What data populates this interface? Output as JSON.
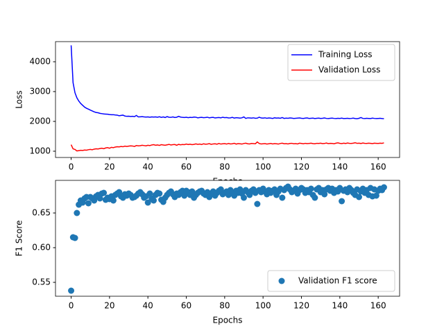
{
  "chart_data": [
    {
      "type": "line",
      "xlabel": "Epochs",
      "ylabel": "Loss",
      "x": [
        0,
        1,
        2,
        3,
        4,
        5,
        6,
        7,
        8,
        9,
        10,
        11,
        12,
        13,
        14,
        15,
        16,
        17,
        18,
        19,
        20,
        21,
        22,
        23,
        24,
        25,
        26,
        27,
        28,
        29,
        30,
        31,
        32,
        33,
        34,
        35,
        36,
        37,
        38,
        39,
        40,
        41,
        42,
        43,
        44,
        45,
        46,
        47,
        48,
        49,
        50,
        51,
        52,
        53,
        54,
        55,
        56,
        57,
        58,
        59,
        60,
        61,
        62,
        63,
        64,
        65,
        66,
        67,
        68,
        69,
        70,
        71,
        72,
        73,
        74,
        75,
        76,
        77,
        78,
        79,
        80,
        81,
        82,
        83,
        84,
        85,
        86,
        87,
        88,
        89,
        90,
        91,
        92,
        93,
        94,
        95,
        96,
        97,
        98,
        99,
        100,
        101,
        102,
        103,
        104,
        105,
        106,
        107,
        108,
        109,
        110,
        111,
        112,
        113,
        114,
        115,
        116,
        117,
        118,
        119,
        120,
        121,
        122,
        123,
        124,
        125,
        126,
        127,
        128,
        129,
        130,
        131,
        132,
        133,
        134,
        135,
        136,
        137,
        138,
        139,
        140,
        141,
        142,
        143,
        144,
        145,
        146,
        147,
        148,
        149,
        150,
        151,
        152,
        153,
        154,
        155,
        156,
        157,
        158,
        159,
        160,
        161,
        162,
        163
      ],
      "series": [
        {
          "name": "Training Loss",
          "color": "#0000ff",
          "values": [
            4550,
            3300,
            2960,
            2790,
            2680,
            2600,
            2540,
            2480,
            2440,
            2410,
            2380,
            2350,
            2320,
            2300,
            2290,
            2270,
            2260,
            2250,
            2245,
            2240,
            2230,
            2225,
            2225,
            2215,
            2210,
            2190,
            2200,
            2210,
            2180,
            2170,
            2175,
            2165,
            2170,
            2160,
            2200,
            2150,
            2155,
            2160,
            2150,
            2145,
            2150,
            2140,
            2150,
            2145,
            2150,
            2140,
            2155,
            2135,
            2150,
            2130,
            2160,
            2140,
            2135,
            2150,
            2130,
            2140,
            2170,
            2145,
            2135,
            2130,
            2140,
            2125,
            2135,
            2130,
            2145,
            2140,
            2120,
            2130,
            2135,
            2125,
            2130,
            2140,
            2120,
            2130,
            2135,
            2115,
            2125,
            2130,
            2120,
            2140,
            2125,
            2130,
            2115,
            2120,
            2135,
            2110,
            2125,
            2120,
            2110,
            2120,
            2150,
            2100,
            2120,
            2115,
            2110,
            2120,
            2105,
            2110,
            2140,
            2115,
            2110,
            2120,
            2105,
            2115,
            2110,
            2100,
            2120,
            2110,
            2115,
            2105,
            2130,
            2100,
            2110,
            2105,
            2115,
            2110,
            2100,
            2105,
            2110,
            2115,
            2105,
            2100,
            2110,
            2115,
            2100,
            2105,
            2110,
            2095,
            2105,
            2110,
            2100,
            2105,
            2115,
            2100,
            2095,
            2105,
            2110,
            2100,
            2095,
            2105,
            2100,
            2110,
            2095,
            2100,
            2105,
            2095,
            2100,
            2110,
            2095,
            2090,
            2105,
            2130,
            2100,
            2095,
            2105,
            2100,
            2095,
            2110,
            2100,
            2095,
            2100,
            2105,
            2095,
            2090
          ]
        },
        {
          "name": "Validation Loss",
          "color": "#ff0000",
          "values": [
            1220,
            1080,
            1060,
            1010,
            1020,
            1030,
            1025,
            1040,
            1035,
            1050,
            1060,
            1050,
            1070,
            1080,
            1075,
            1090,
            1100,
            1085,
            1110,
            1120,
            1100,
            1130,
            1120,
            1140,
            1150,
            1145,
            1160,
            1150,
            1170,
            1160,
            1170,
            1180,
            1175,
            1160,
            1190,
            1180,
            1185,
            1200,
            1190,
            1180,
            1200,
            1190,
            1210,
            1220,
            1200,
            1210,
            1195,
            1220,
            1210,
            1200,
            1215,
            1230,
            1210,
            1220,
            1225,
            1200,
            1230,
            1215,
            1225,
            1220,
            1240,
            1225,
            1235,
            1220,
            1230,
            1245,
            1230,
            1240,
            1225,
            1250,
            1235,
            1240,
            1255,
            1230,
            1245,
            1250,
            1235,
            1260,
            1240,
            1250,
            1255,
            1240,
            1260,
            1245,
            1250,
            1265,
            1240,
            1255,
            1250,
            1240,
            1260,
            1270,
            1250,
            1245,
            1260,
            1255,
            1250,
            1310,
            1260,
            1245,
            1250,
            1255,
            1240,
            1250,
            1260,
            1245,
            1255,
            1250,
            1240,
            1260,
            1270,
            1250,
            1255,
            1245,
            1260,
            1265,
            1250,
            1255,
            1245,
            1270,
            1260,
            1250,
            1265,
            1255,
            1260,
            1270,
            1255,
            1250,
            1265,
            1260,
            1270,
            1255,
            1260,
            1275,
            1255,
            1265,
            1260,
            1250,
            1270,
            1280,
            1265,
            1255,
            1270,
            1260,
            1275,
            1265,
            1260,
            1270,
            1285,
            1265,
            1270,
            1260,
            1275,
            1265,
            1260,
            1270,
            1265,
            1255,
            1270,
            1265,
            1260,
            1270,
            1265,
            1280
          ]
        }
      ],
      "xlim": [
        -8.15,
        171.15
      ],
      "xticks": [
        0,
        20,
        40,
        60,
        80,
        100,
        120,
        140,
        160
      ],
      "ylim": [
        790,
        4675
      ],
      "yticks": [
        1000,
        2000,
        3000,
        4000
      ],
      "legend": "upper right"
    },
    {
      "type": "scatter",
      "xlabel": "Epochs",
      "ylabel": "F1 Score",
      "x": [
        0,
        1,
        2,
        3,
        4,
        5,
        6,
        7,
        8,
        9,
        10,
        11,
        12,
        13,
        14,
        15,
        16,
        17,
        18,
        19,
        20,
        21,
        22,
        23,
        24,
        25,
        26,
        27,
        28,
        29,
        30,
        31,
        32,
        33,
        34,
        35,
        36,
        37,
        38,
        39,
        40,
        41,
        42,
        43,
        44,
        45,
        46,
        47,
        48,
        49,
        50,
        51,
        52,
        53,
        54,
        55,
        56,
        57,
        58,
        59,
        60,
        61,
        62,
        63,
        64,
        65,
        66,
        67,
        68,
        69,
        70,
        71,
        72,
        73,
        74,
        75,
        76,
        77,
        78,
        79,
        80,
        81,
        82,
        83,
        84,
        85,
        86,
        87,
        88,
        89,
        90,
        91,
        92,
        93,
        94,
        95,
        96,
        97,
        98,
        99,
        100,
        101,
        102,
        103,
        104,
        105,
        106,
        107,
        108,
        109,
        110,
        111,
        112,
        113,
        114,
        115,
        116,
        117,
        118,
        119,
        120,
        121,
        122,
        123,
        124,
        125,
        126,
        127,
        128,
        129,
        130,
        131,
        132,
        133,
        134,
        135,
        136,
        137,
        138,
        139,
        140,
        141,
        142,
        143,
        144,
        145,
        146,
        147,
        148,
        149,
        150,
        151,
        152,
        153,
        154,
        155,
        156,
        157,
        158,
        159,
        160,
        161,
        162,
        163
      ],
      "series": [
        {
          "name": "Validation F1 score",
          "color": "#1f77b4",
          "values": [
            0.538,
            0.615,
            0.614,
            0.65,
            0.662,
            0.668,
            0.665,
            0.671,
            0.673,
            0.664,
            0.673,
            0.671,
            0.668,
            0.674,
            0.676,
            0.671,
            0.678,
            0.679,
            0.669,
            0.672,
            0.67,
            0.674,
            0.668,
            0.676,
            0.678,
            0.68,
            0.674,
            0.672,
            0.677,
            0.675,
            0.678,
            0.676,
            0.672,
            0.673,
            0.675,
            0.678,
            0.68,
            0.677,
            0.672,
            0.674,
            0.665,
            0.678,
            0.671,
            0.668,
            0.676,
            0.679,
            0.678,
            0.669,
            0.666,
            0.672,
            0.676,
            0.679,
            0.681,
            0.677,
            0.673,
            0.678,
            0.676,
            0.68,
            0.682,
            0.675,
            0.682,
            0.68,
            0.676,
            0.681,
            0.672,
            0.676,
            0.679,
            0.681,
            0.682,
            0.678,
            0.676,
            0.68,
            0.673,
            0.678,
            0.681,
            0.675,
            0.679,
            0.682,
            0.684,
            0.677,
            0.679,
            0.681,
            0.676,
            0.683,
            0.68,
            0.675,
            0.682,
            0.679,
            0.684,
            0.678,
            0.672,
            0.683,
            0.68,
            0.676,
            0.682,
            0.684,
            0.679,
            0.663,
            0.683,
            0.68,
            0.685,
            0.681,
            0.677,
            0.683,
            0.679,
            0.682,
            0.684,
            0.676,
            0.681,
            0.685,
            0.672,
            0.683,
            0.686,
            0.688,
            0.684,
            0.68,
            0.682,
            0.685,
            0.678,
            0.683,
            0.686,
            0.684,
            0.679,
            0.683,
            0.68,
            0.685,
            0.676,
            0.672,
            0.684,
            0.686,
            0.68,
            0.683,
            0.677,
            0.684,
            0.686,
            0.682,
            0.685,
            0.679,
            0.683,
            0.681,
            0.686,
            0.667,
            0.682,
            0.684,
            0.68,
            0.686,
            0.683,
            0.679,
            0.676,
            0.684,
            0.673,
            0.681,
            0.685,
            0.679,
            0.683,
            0.676,
            0.686,
            0.674,
            0.684,
            0.675,
            0.682,
            0.685,
            0.683,
            0.687
          ]
        }
      ],
      "xlim": [
        -8.15,
        171.15
      ],
      "xticks": [
        0,
        20,
        40,
        60,
        80,
        100,
        120,
        140,
        160
      ],
      "ylim": [
        0.53,
        0.697
      ],
      "yticks": [
        0.55,
        {
          "value": 0.6,
          "label": "0.60"
        },
        0.65
      ],
      "legend": "lower right"
    }
  ]
}
